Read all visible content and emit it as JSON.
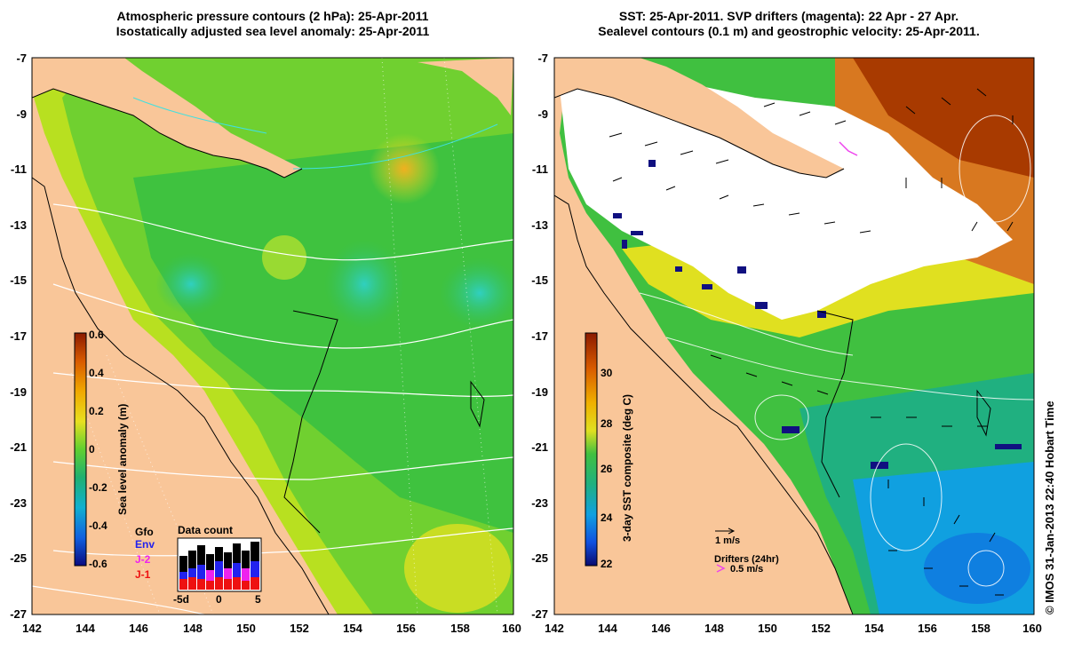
{
  "left_panel": {
    "title_line1": "Atmospheric pressure contours (2 hPa): 25-Apr-2011",
    "title_line2": "Isostatically adjusted sea level anomaly: 25-Apr-2011",
    "colorbar_label": "Sea level anomaly (m)",
    "colorbar_ticks": [
      "0.6",
      "0.4",
      "0.2",
      "0",
      "-0.2",
      "-0.4",
      "-0.6"
    ],
    "inset": {
      "title": "Data count",
      "legend": [
        {
          "label": "Gfo",
          "color": "#000000"
        },
        {
          "label": "Env",
          "color": "#2222ee"
        },
        {
          "label": "J-2",
          "color": "#ee22ee"
        },
        {
          "label": "J-1",
          "color": "#ee1111"
        }
      ],
      "x_ticks": [
        "-5d",
        "0",
        "5"
      ]
    }
  },
  "right_panel": {
    "title_line1": "SST: 25-Apr-2011. SVP drifters (magenta): 22 Apr - 27 Apr.",
    "title_line2": "Sealevel contours (0.1 m) and geostrophic velocity: 25-Apr-2011.",
    "colorbar_label": "3-day SST composite (deg C)",
    "colorbar_ticks": [
      "30",
      "28",
      "26",
      "24",
      "22"
    ],
    "velocity_scale_label": "1 m/s",
    "drifters_label": "Drifters (24hr)",
    "drifters_scale_label": "0.5 m/s"
  },
  "axes": {
    "lat_ticks": [
      "-7",
      "-9",
      "-11",
      "-13",
      "-15",
      "-17",
      "-19",
      "-21",
      "-23",
      "-25",
      "-27"
    ],
    "lon_ticks": [
      "142",
      "144",
      "146",
      "148",
      "150",
      "152",
      "154",
      "156",
      "158",
      "160"
    ]
  },
  "credit": "© IMOS 31-Jan-2013 22:40 Hobart Time",
  "colors": {
    "land": "#f9c699",
    "sea_green": "#3fc23f",
    "contour_white": "#ffffff",
    "drifter_magenta": "#ee44ee"
  }
}
